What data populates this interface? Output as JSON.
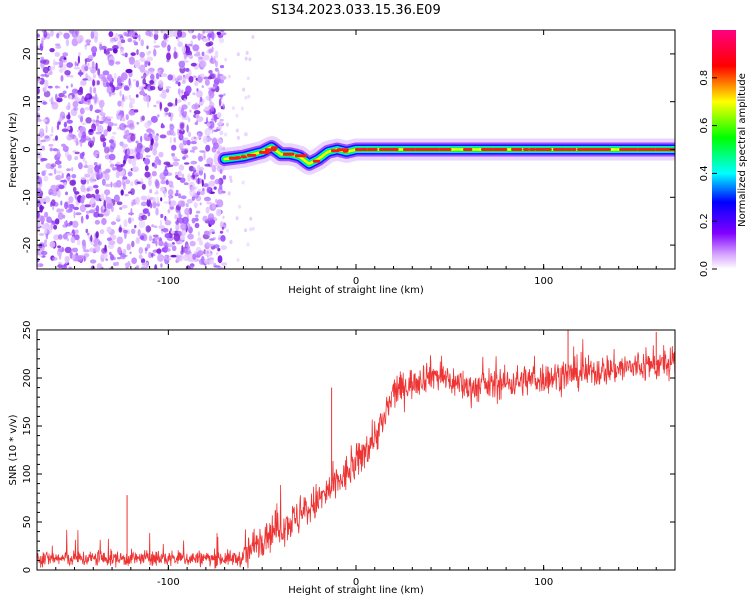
{
  "title": "S134.2023.033.15.36.E09",
  "chart_data": [
    {
      "type": "heatmap",
      "xlabel": "Height of straight line (km)",
      "ylabel": "Frequency (Hz)",
      "xlim": [
        -170,
        170
      ],
      "ylim": [
        -25,
        25
      ],
      "xticks": [
        -100,
        0,
        100
      ],
      "yticks": [
        -20,
        -10,
        0,
        10,
        20
      ],
      "colorbar": {
        "label": "Normalized spectral amplitude",
        "range": [
          0,
          1
        ],
        "ticks": [
          "0.0",
          "0.2",
          "0.4",
          "0.6",
          "0.8"
        ],
        "colormap": [
          "#ffffff",
          "#8000ff",
          "#0000ff",
          "#00ffff",
          "#00ff00",
          "#ffff00",
          "#ff0000",
          "#ff0080"
        ]
      },
      "noise_region_x": [
        -170,
        -70
      ],
      "ridge": {
        "x": [
          -70,
          -60,
          -50,
          -45,
          -40,
          -35,
          -30,
          -25,
          -20,
          -15,
          -10,
          -5,
          0,
          5,
          10,
          20,
          40,
          60,
          80,
          100,
          120,
          140,
          170
        ],
        "freq": [
          -2,
          -1.5,
          -0.5,
          0.5,
          -1,
          -1,
          -1.5,
          -3,
          -2,
          -0.5,
          0,
          -0.5,
          0,
          0,
          0,
          0,
          0,
          0,
          0,
          0,
          0,
          0,
          0
        ]
      }
    },
    {
      "type": "line",
      "xlabel": "Height of straight line (km)",
      "ylabel": "SNR (10 * v/v)",
      "xlim": [
        -170,
        170
      ],
      "ylim": [
        0,
        250
      ],
      "xticks": [
        -100,
        0,
        100
      ],
      "yticks": [
        0,
        50,
        100,
        150,
        200,
        250
      ],
      "color": "#ee3333",
      "trend": {
        "x": [
          -170,
          -60,
          -50,
          -30,
          -10,
          0,
          15,
          20,
          40,
          60,
          80,
          100,
          140,
          170
        ],
        "y": [
          12,
          12,
          35,
          55,
          90,
          110,
          155,
          185,
          205,
          190,
          195,
          200,
          210,
          215
        ]
      },
      "spikes": [
        {
          "x": -122,
          "y": 78
        },
        {
          "x": -13,
          "y": 190
        },
        {
          "x": 113,
          "y": 250
        },
        {
          "x": 160,
          "y": 248
        }
      ]
    }
  ]
}
